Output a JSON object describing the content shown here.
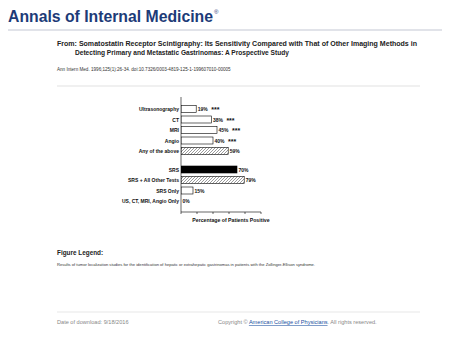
{
  "header": {
    "journal": "Annals of Internal Medicine",
    "journal_mark": "®",
    "title_lines": [
      "From: Somatostatin Receptor Scintigraphy: Its Sensitivity Compared with That of Other Imaging Methods in",
      "Detecting Primary and Metastatic Gastrinomas: A Prospective Study"
    ],
    "citation": "Ann Intern Med. 1996;125(1):26-34. doi:10.7326/0003-4819-125-1-199607010-00005"
  },
  "chart_data": {
    "type": "bar",
    "orientation": "horizontal",
    "categories": [
      "Ultrasonography",
      "CT",
      "MRI",
      "Angio",
      "Any of the above",
      "SRS",
      "SRS + All Other Tests",
      "SRS Only",
      "US, CT, MRI, Angio Only"
    ],
    "values": [
      19,
      38,
      45,
      40,
      59,
      70,
      79,
      15,
      0
    ],
    "value_labels": [
      "19%",
      "38%",
      "45%",
      "40%",
      "59%",
      "70%",
      "79%",
      "15%",
      "0%"
    ],
    "annotations": [
      "***",
      "***",
      "***",
      "***",
      null,
      null,
      null,
      null,
      null
    ],
    "colors": [
      "#ffffff",
      "#ffffff",
      "#ffffff",
      "#ffffff",
      "#d9d9d9",
      "#000000",
      "#d9d9d9",
      "#ffffff",
      "#ffffff"
    ],
    "xlabel": "Percentage of Patients Positive",
    "xlim": [
      0,
      100
    ],
    "xticks": [
      0,
      20,
      40,
      60,
      80,
      100
    ],
    "tick_labels": false,
    "grid": false,
    "data_labels": true
  },
  "figure_legend": {
    "heading": "Figure Legend:",
    "text": "Results of tumor localization studies for the identification of hepatic or extrahepatic gastrinomas in patients with the Zollinger-Ellison syndrome."
  },
  "footer": {
    "date": "Date of download:  9/18/2016",
    "copyright_prefix": "Copyright © ",
    "copyright_link": "American College of Physicians",
    "copyright_suffix": ". All rights reserved."
  }
}
